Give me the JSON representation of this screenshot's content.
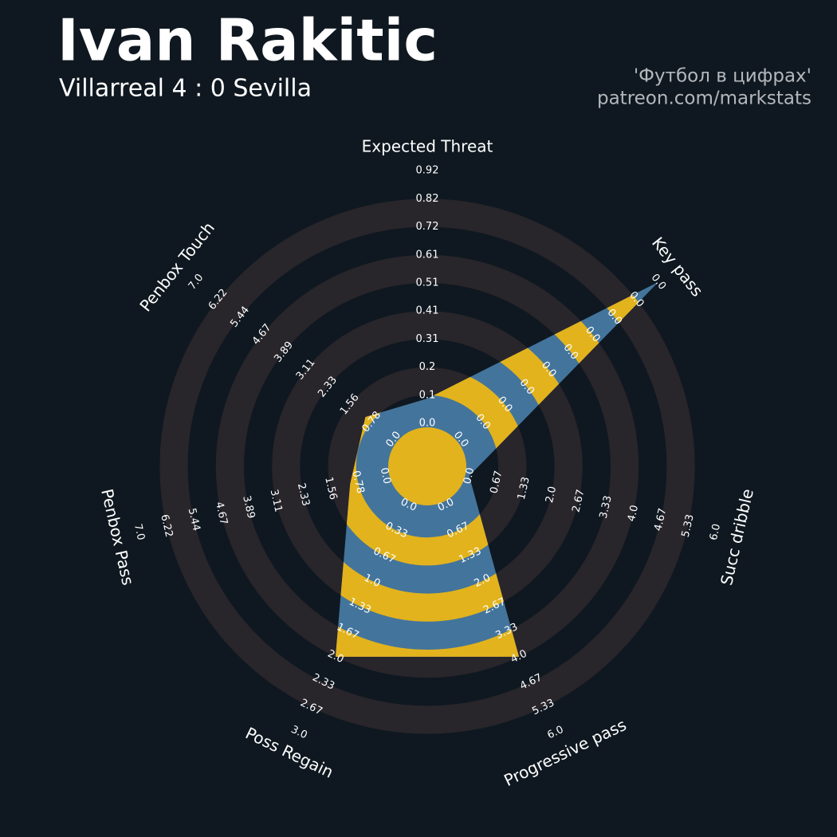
{
  "title": "Ivan Rakitic",
  "subtitle": "Villarreal 4 : 0 Sevilla",
  "credits": [
    "'Футбол в цифрах'",
    "patreon.com/markstats"
  ],
  "chart_data": {
    "type": "radar",
    "categories": [
      "Expected Threat",
      "Key pass",
      "Succ dribble",
      "Progressive pass",
      "Poss Regain",
      "Penbox Pass",
      "Penbox Touch"
    ],
    "values": [
      0.09,
      1,
      0,
      4,
      2,
      1,
      1
    ],
    "ranges": [
      [
        0,
        0.92
      ],
      [
        0,
        0
      ],
      [
        0,
        6
      ],
      [
        0,
        6
      ],
      [
        0,
        3
      ],
      [
        0,
        7
      ],
      [
        0,
        7
      ]
    ],
    "ticks": [
      [
        {
          "value": 0,
          "label": "0.0"
        },
        0.1,
        0.2,
        0.31,
        0.41,
        0.51,
        0.61,
        0.72,
        0.82,
        0.92
      ],
      [
        {
          "value": 0,
          "label": "0.0"
        },
        {
          "value": 0,
          "label": "0.0"
        },
        {
          "value": 0,
          "label": "0.0"
        },
        {
          "value": 0,
          "label": "0.0"
        },
        {
          "value": 0,
          "label": "0.0"
        },
        {
          "value": 0,
          "label": "0.0"
        },
        {
          "value": 0,
          "label": "0.0"
        },
        {
          "value": 0,
          "label": "0.0"
        },
        {
          "value": 0,
          "label": "0.0"
        },
        {
          "value": 0,
          "label": "0.0"
        }
      ],
      [
        {
          "value": 0,
          "label": "0.0"
        },
        0.67,
        1.33,
        {
          "value": 2,
          "label": "2.0"
        },
        2.67,
        3.33,
        {
          "value": 4,
          "label": "4.0"
        },
        4.67,
        5.33,
        {
          "value": 6,
          "label": "6.0"
        }
      ],
      [
        {
          "value": 0,
          "label": "0.0"
        },
        0.67,
        1.33,
        {
          "value": 2,
          "label": "2.0"
        },
        2.67,
        3.33,
        {
          "value": 4,
          "label": "4.0"
        },
        4.67,
        5.33,
        {
          "value": 6,
          "label": "6.0"
        }
      ],
      [
        {
          "value": 0,
          "label": "0.0"
        },
        0.33,
        0.67,
        {
          "value": 1,
          "label": "1.0"
        },
        1.33,
        1.67,
        {
          "value": 2,
          "label": "2.0"
        },
        2.33,
        2.67,
        {
          "value": 3,
          "label": "3.0"
        }
      ],
      [
        {
          "value": 0,
          "label": "0.0"
        },
        0.78,
        1.56,
        2.33,
        3.11,
        3.89,
        4.67,
        5.44,
        6.22,
        {
          "value": 7,
          "label": "7.0"
        }
      ],
      [
        {
          "value": 0,
          "label": "0.0"
        },
        0.78,
        1.56,
        2.33,
        3.11,
        3.89,
        4.67,
        5.44,
        6.22,
        {
          "value": 7,
          "label": "7.0"
        }
      ]
    ],
    "colors": {
      "background": "#0f1820",
      "rings": "#28252b",
      "fill": "#43749c",
      "alt_fill": "#e2b31d"
    }
  }
}
